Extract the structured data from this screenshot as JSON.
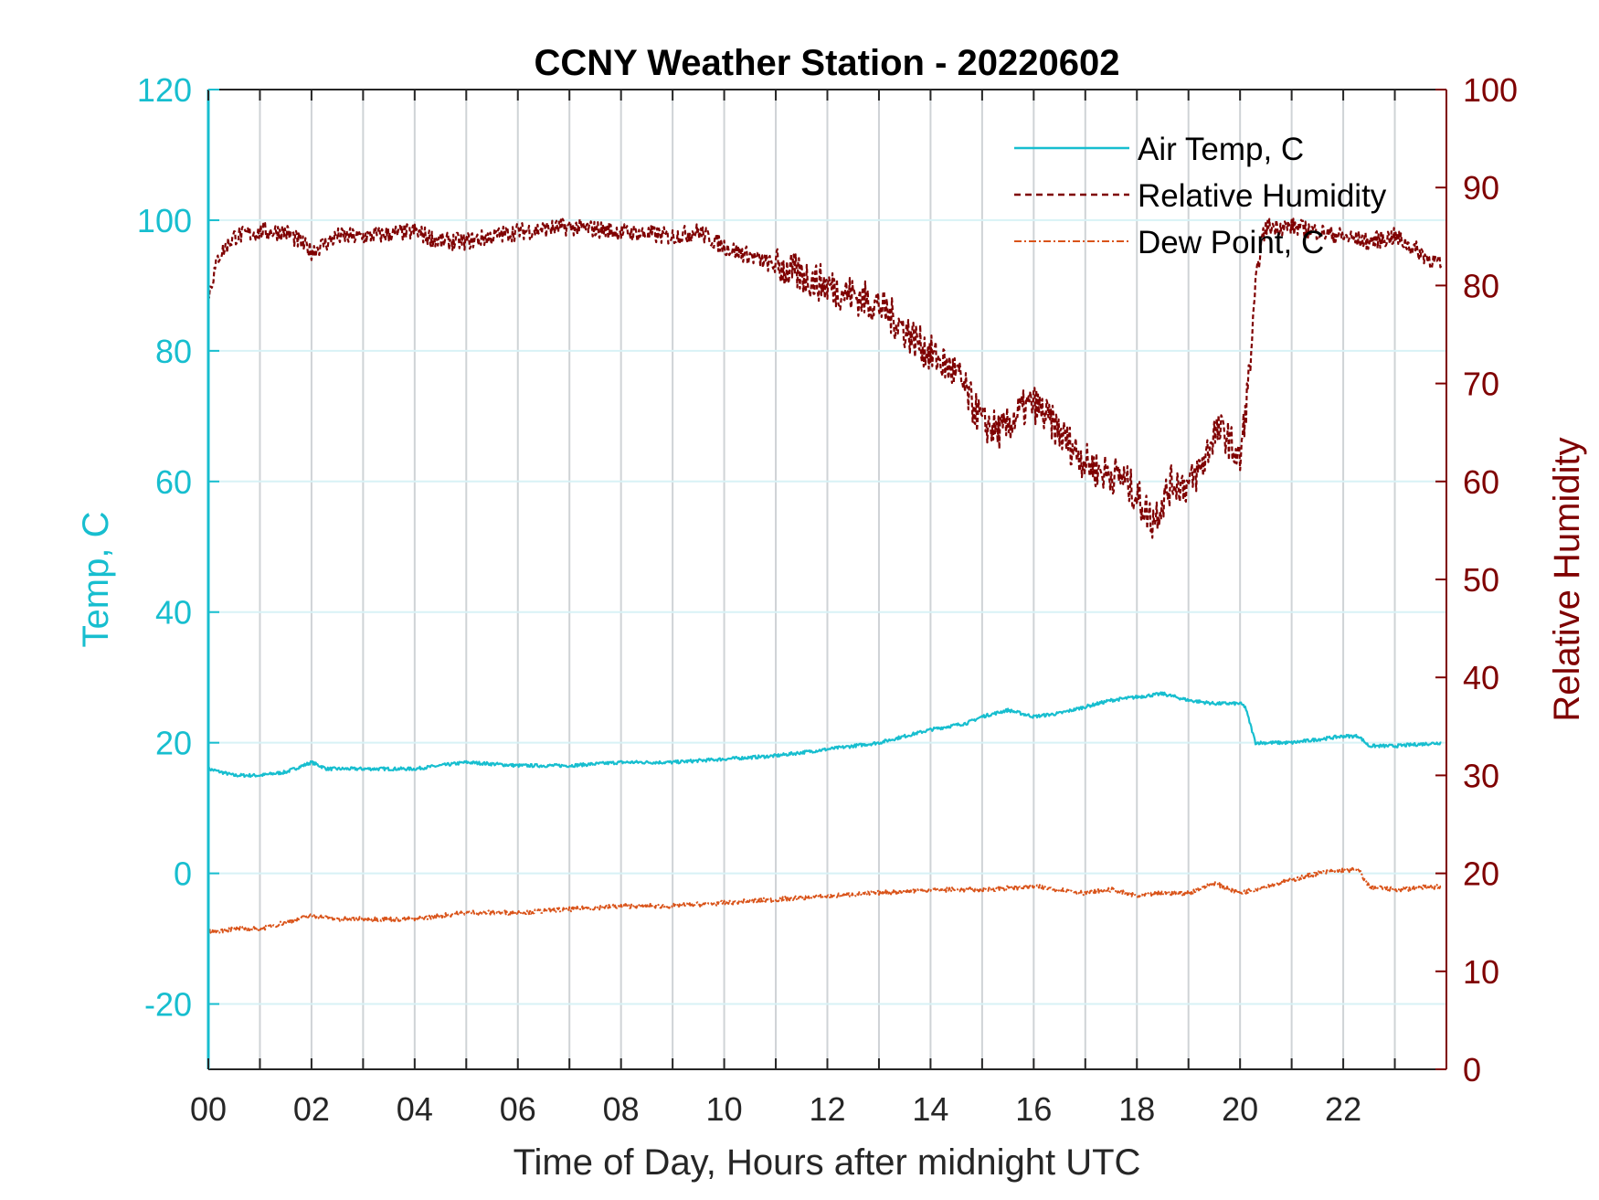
{
  "chart_data": {
    "type": "line",
    "title": "CCNY Weather Station - 20220602",
    "xlabel": "Time of Day, Hours after midnight UTC",
    "ylabel_left": "Temp, C",
    "ylabel_right": "Relative Humidity",
    "xlim": [
      0,
      24
    ],
    "ylim_left": [
      -30,
      120
    ],
    "ylim_right": [
      0,
      100
    ],
    "x_ticks": [
      "00",
      "02",
      "04",
      "06",
      "08",
      "10",
      "12",
      "14",
      "16",
      "18",
      "20",
      "22"
    ],
    "y_ticks_left": [
      "-20",
      "0",
      "20",
      "40",
      "60",
      "80",
      "100",
      "120"
    ],
    "y_ticks_right": [
      "0",
      "10",
      "20",
      "30",
      "40",
      "50",
      "60",
      "70",
      "80",
      "90",
      "100"
    ],
    "grid": true,
    "legend_position": "top-right",
    "colors": {
      "temp": "#17becf",
      "rh": "#7f0000",
      "dew": "#d95319"
    },
    "series": [
      {
        "name": "Air Temp, C",
        "axis": "left",
        "style": "solid",
        "x": [
          0,
          0.5,
          1,
          1.5,
          2,
          2.3,
          3,
          4,
          5,
          6,
          7,
          8,
          9,
          10,
          11,
          12,
          13,
          14,
          14.7,
          15,
          15.5,
          16,
          16.5,
          17,
          17.5,
          18,
          18.5,
          19,
          19.5,
          20,
          20.1,
          20.3,
          21,
          22,
          22.3,
          22.5,
          23,
          23.9
        ],
        "y": [
          16,
          15,
          15,
          15.5,
          17,
          16,
          16,
          16,
          17,
          16.5,
          16.5,
          17,
          17,
          17.5,
          18,
          19,
          20,
          22,
          23,
          24,
          25,
          24,
          24.5,
          25.5,
          26.5,
          27,
          27.5,
          26.5,
          26,
          26,
          25.5,
          20,
          20,
          21,
          21,
          19.5,
          19.5,
          20
        ]
      },
      {
        "name": "Relative Humidity",
        "axis": "right",
        "style": "dashed",
        "x": [
          0,
          0.2,
          0.5,
          1,
          1.5,
          2,
          2.5,
          3,
          4,
          4.5,
          5,
          6,
          7,
          8,
          9,
          9.5,
          10,
          11,
          12,
          13,
          14,
          14.5,
          15,
          15.4,
          15.7,
          16,
          16.5,
          17,
          17.3,
          17.7,
          18,
          18.3,
          18.5,
          18.7,
          19,
          19.3,
          19.5,
          19.7,
          20,
          20.2,
          20.3,
          20.4,
          20.5,
          21,
          21.5,
          22,
          22.5,
          23,
          23.9
        ],
        "y": [
          79,
          83,
          85,
          85.5,
          85.5,
          83.5,
          85,
          85,
          85.5,
          84.5,
          84.5,
          85.5,
          86,
          85.5,
          85,
          85.5,
          84,
          82,
          80,
          78,
          73,
          71,
          66,
          65,
          67,
          68,
          65,
          62,
          61,
          60.5,
          58.5,
          56,
          58,
          60,
          59.5,
          62,
          65,
          65,
          62,
          72,
          80,
          84,
          86,
          86,
          85.5,
          85,
          84.5,
          85,
          82
        ]
      },
      {
        "name": "Dew Point, C",
        "axis": "left",
        "style": "dashdot",
        "x": [
          0,
          0.5,
          1,
          1.5,
          2,
          2.5,
          3,
          4,
          5,
          6,
          7,
          8,
          9,
          10,
          11,
          12,
          13,
          14,
          15,
          16,
          16.5,
          17,
          17.5,
          18,
          18.5,
          19,
          19.5,
          20,
          20.5,
          21,
          21.5,
          22,
          22.3,
          22.5,
          23,
          23.9
        ],
        "y": [
          -9,
          -8.5,
          -8.5,
          -7.5,
          -6.5,
          -7,
          -7,
          -7,
          -6,
          -6,
          -5.5,
          -5,
          -5,
          -4.5,
          -4,
          -3.5,
          -3,
          -2.5,
          -2.5,
          -2,
          -2.5,
          -3,
          -2.5,
          -3.5,
          -3,
          -3,
          -1.5,
          -3,
          -2,
          -1,
          0,
          0.5,
          0.5,
          -2,
          -2.5,
          -2
        ]
      }
    ]
  }
}
